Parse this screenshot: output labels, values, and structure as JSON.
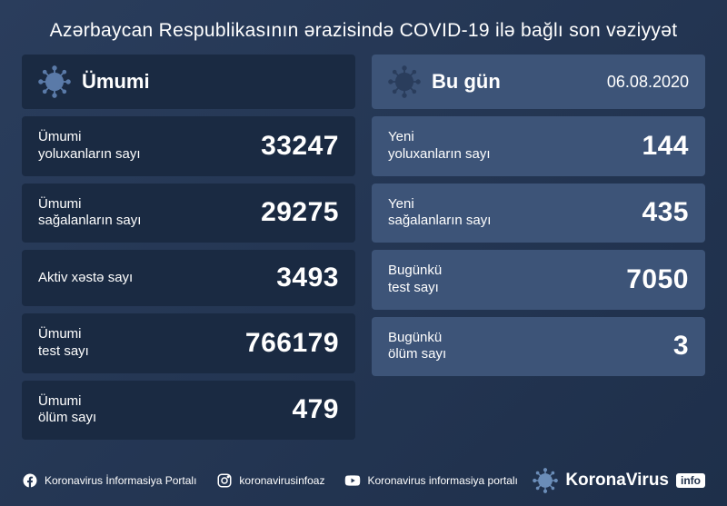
{
  "colors": {
    "bg_gradient_start": "#2a3d5c",
    "bg_gradient_end": "#1e2f4a",
    "panel_left_bg": "#1a2a42",
    "panel_right_bg": "#3d5478",
    "text": "#ffffff",
    "virus_icon": "#6b8db8"
  },
  "title": "Azərbaycan Respublikasının ərazisində COVID-19 ilə bağlı son vəziyyət",
  "left_panel": {
    "title": "Ümumi",
    "stats": [
      {
        "label": "Ümumi\nyoluxanların sayı",
        "value": "33247"
      },
      {
        "label": "Ümumi\nsağalanların sayı",
        "value": "29275"
      },
      {
        "label": "Aktiv xəstə sayı",
        "value": "3493"
      },
      {
        "label": "Ümumi\ntest sayı",
        "value": "766179"
      },
      {
        "label": "Ümumi\nölüm sayı",
        "value": "479"
      }
    ]
  },
  "right_panel": {
    "title": "Bu gün",
    "date": "06.08.2020",
    "stats": [
      {
        "label": "Yeni\nyoluxanların sayı",
        "value": "144"
      },
      {
        "label": "Yeni\nsağalanların sayı",
        "value": "435"
      },
      {
        "label": "Bugünkü\ntest sayı",
        "value": "7050"
      },
      {
        "label": "Bugünkü\nölüm sayı",
        "value": "3"
      }
    ]
  },
  "footer": {
    "facebook": "Koronavirus İnformasiya Portalı",
    "instagram": "koronavirusinfoaz",
    "youtube": "Koronavirus informasiya portalı",
    "brand_main": "KoronaVirus",
    "brand_badge": "info"
  }
}
